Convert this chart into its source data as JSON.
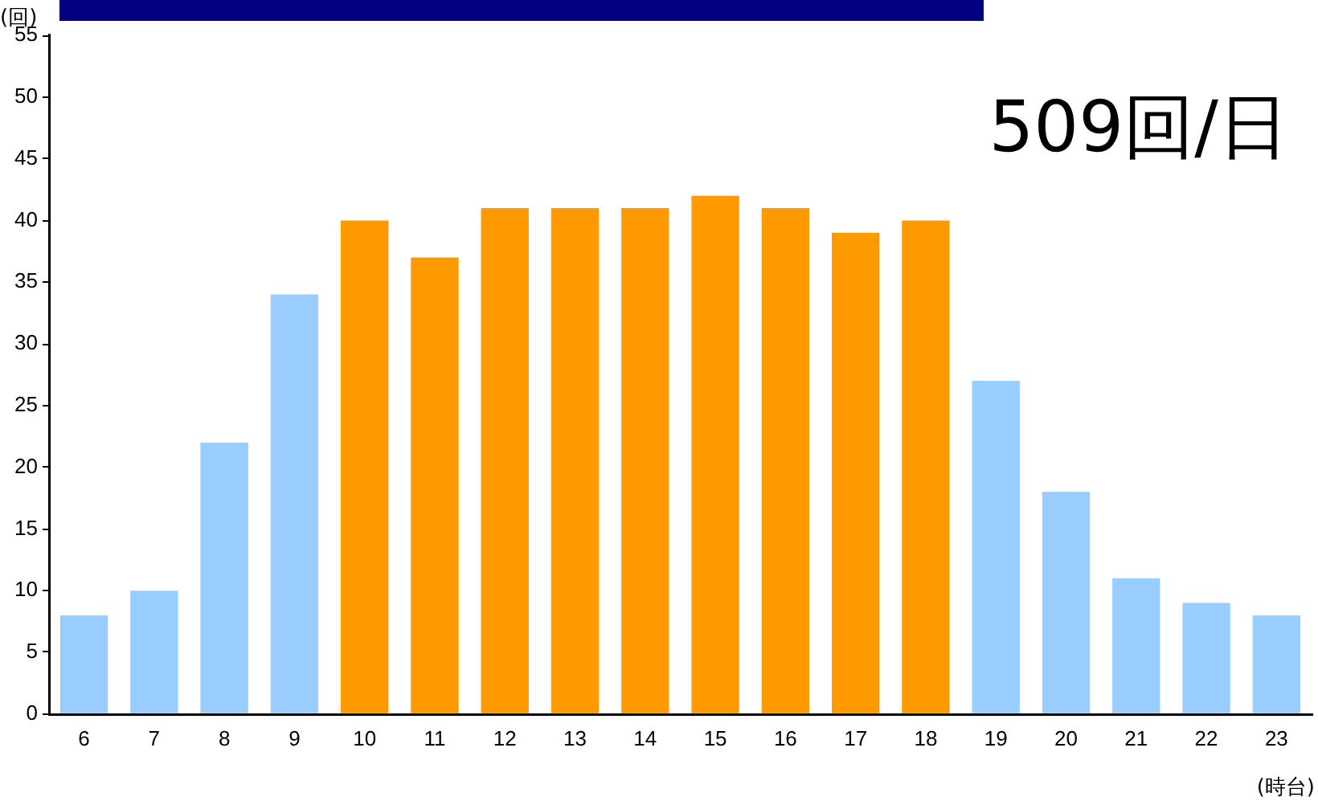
{
  "chart_data": {
    "type": "bar",
    "ylabel": "(回)",
    "xlabel": "(時台)",
    "annotations": [
      "509回/日"
    ],
    "categories": [
      "6",
      "7",
      "8",
      "9",
      "10",
      "11",
      "12",
      "13",
      "14",
      "15",
      "16",
      "17",
      "18",
      "19",
      "20",
      "21",
      "22",
      "23"
    ],
    "values": [
      8,
      10,
      22,
      34,
      40,
      37,
      41,
      41,
      41,
      42,
      41,
      39,
      40,
      27,
      18,
      11,
      9,
      8
    ],
    "colors": [
      "#99ccff",
      "#99ccff",
      "#99ccff",
      "#99ccff",
      "#ff9900",
      "#ff9900",
      "#ff9900",
      "#ff9900",
      "#ff9900",
      "#ff9900",
      "#ff9900",
      "#ff9900",
      "#ff9900",
      "#99ccff",
      "#99ccff",
      "#99ccff",
      "#99ccff",
      "#99ccff"
    ],
    "ylim": [
      0,
      55
    ],
    "yticks": [
      0,
      5,
      10,
      15,
      20,
      25,
      30,
      35,
      40,
      45,
      50,
      55
    ],
    "grid": false,
    "legend": false
  }
}
